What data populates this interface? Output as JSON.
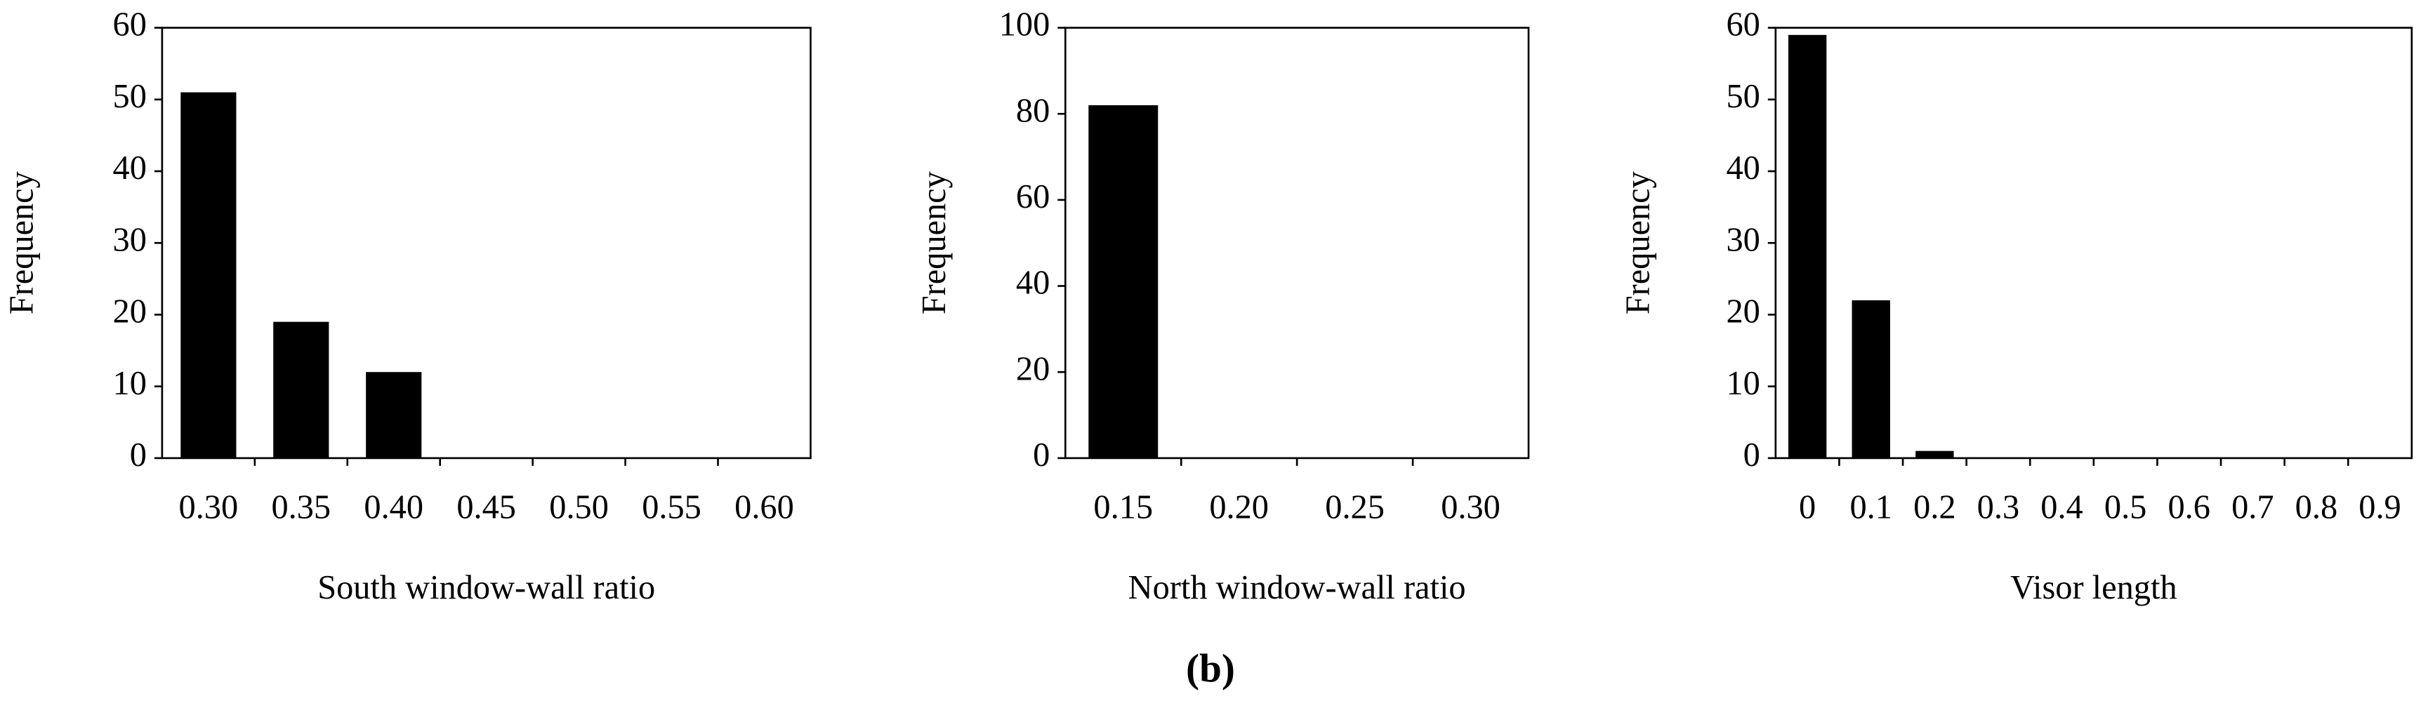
{
  "chart_data": [
    {
      "type": "bar",
      "xlabel": "South window-wall ratio",
      "ylabel": "Frequency",
      "categories": [
        "0.30",
        "0.35",
        "0.40",
        "0.45",
        "0.50",
        "0.55",
        "0.60"
      ],
      "values": [
        51,
        19,
        12,
        0,
        0,
        0,
        0
      ],
      "color": "#000000",
      "ylim": [
        0,
        60
      ],
      "yticks": [
        0,
        10,
        20,
        30,
        40,
        50,
        60
      ]
    },
    {
      "type": "bar",
      "xlabel": "North window-wall ratio",
      "ylabel": "Frequency",
      "categories": [
        "0.15",
        "0.20",
        "0.25",
        "0.30"
      ],
      "values": [
        82,
        0,
        0,
        0
      ],
      "color": "#000000",
      "ylim": [
        0,
        100
      ],
      "yticks": [
        0,
        20,
        40,
        60,
        80,
        100
      ]
    },
    {
      "type": "bar",
      "xlabel": "Visor length",
      "ylabel": "Frequency",
      "categories": [
        "0",
        "0.1",
        "0.2",
        "0.3",
        "0.4",
        "0.5",
        "0.6",
        "0.7",
        "0.8",
        "0.9"
      ],
      "values": [
        59,
        22,
        1,
        0,
        0,
        0,
        0,
        0,
        0,
        0
      ],
      "color": "#000000",
      "ylim": [
        0,
        60
      ],
      "yticks": [
        0,
        10,
        20,
        30,
        40,
        50,
        60
      ]
    }
  ],
  "caption": "(b)"
}
